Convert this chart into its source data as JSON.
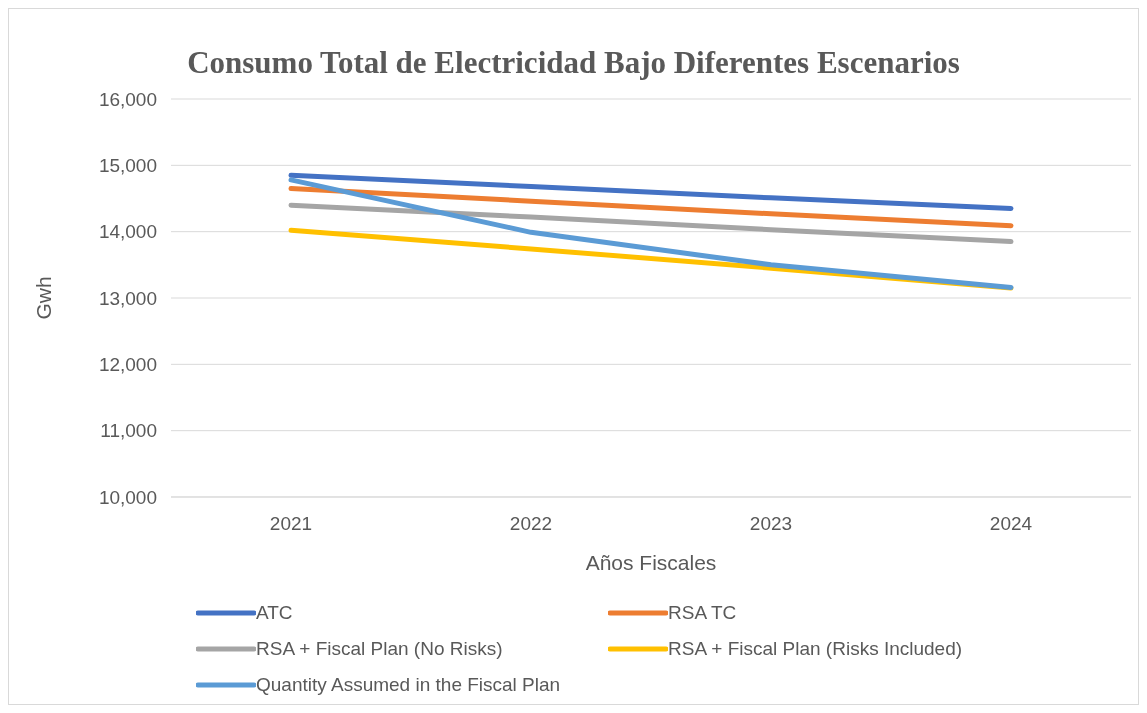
{
  "chart_data": {
    "type": "line",
    "title": "Consumo Total de Electricidad Bajo Diferentes Escenarios",
    "xlabel": "Años Fiscales",
    "ylabel": "Gwh",
    "categories": [
      "2021",
      "2022",
      "2023",
      "2024"
    ],
    "ylim": [
      10000,
      16000
    ],
    "yticks": [
      {
        "value": 10000,
        "label": "10,000"
      },
      {
        "value": 11000,
        "label": "11,000"
      },
      {
        "value": 12000,
        "label": "12,000"
      },
      {
        "value": 13000,
        "label": "13,000"
      },
      {
        "value": 14000,
        "label": "14,000"
      },
      {
        "value": 15000,
        "label": "15,000"
      },
      {
        "value": 16000,
        "label": "16,000"
      }
    ],
    "grid": "y",
    "legend": "bottom",
    "marker": "none",
    "line_style": "solid",
    "series": [
      {
        "name": "ATC",
        "color": "#4472c4",
        "values": [
          14850,
          14680,
          14510,
          14350
        ]
      },
      {
        "name": "RSA TC",
        "color": "#ed7d31",
        "values": [
          14650,
          14460,
          14270,
          14090
        ]
      },
      {
        "name": "RSA + Fiscal Plan (No Risks)",
        "color": "#a5a5a5",
        "values": [
          14400,
          14220,
          14030,
          13850
        ]
      },
      {
        "name": "RSA + Fiscal Plan (Risks Included)",
        "color": "#ffc000",
        "values": [
          14020,
          13740,
          13450,
          13150
        ]
      },
      {
        "name": "Quantity Assumed in the Fiscal Plan",
        "color": "#5b9bd5",
        "values": [
          14780,
          13990,
          13500,
          13160
        ]
      }
    ]
  }
}
